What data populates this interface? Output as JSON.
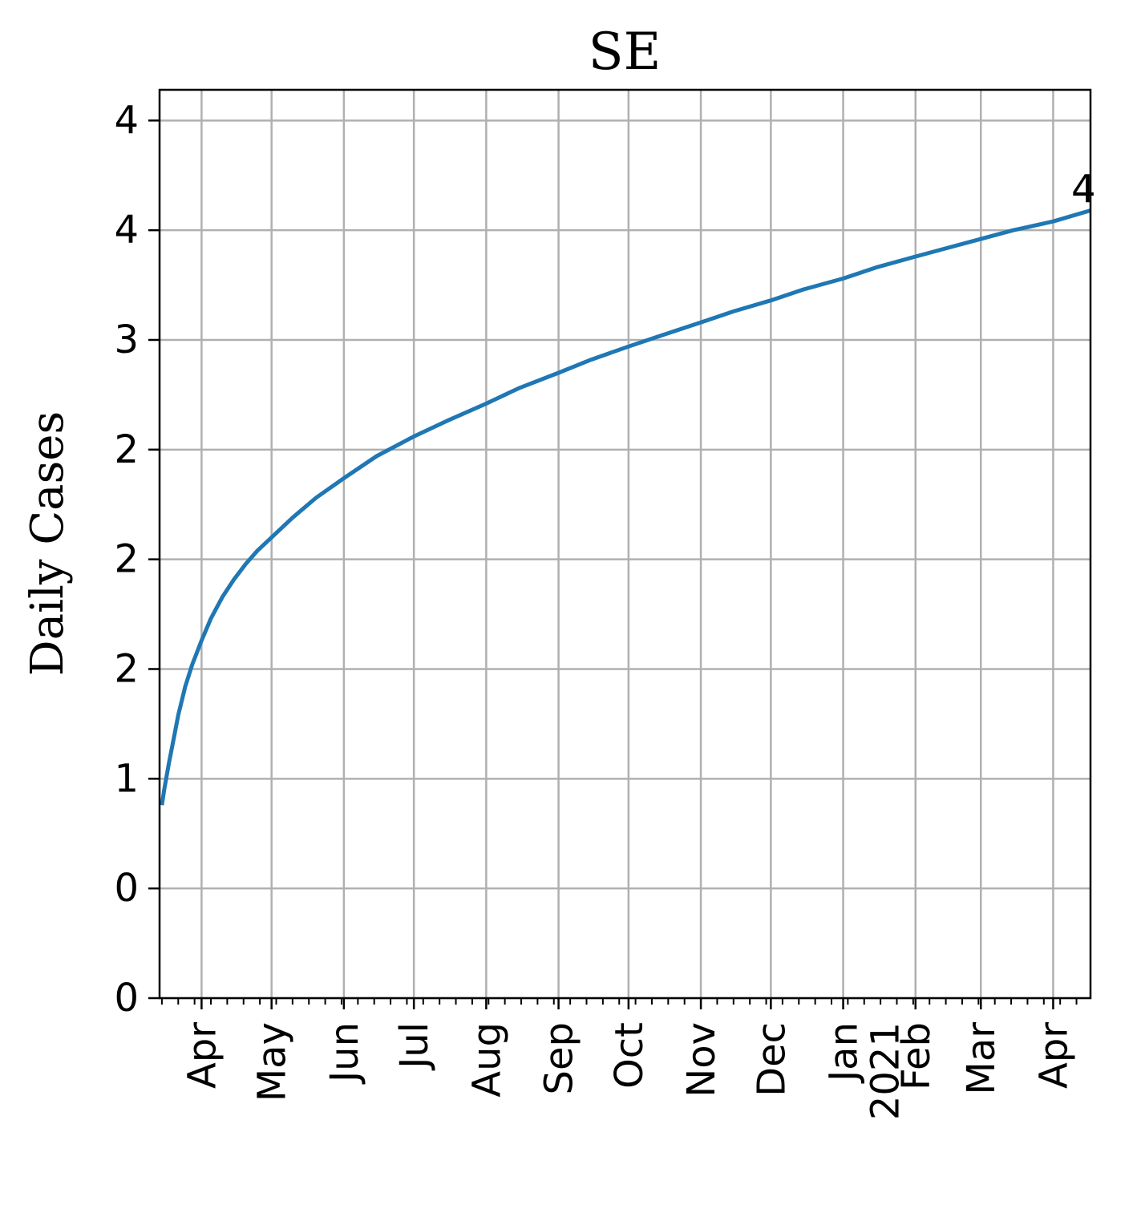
{
  "chart_data": {
    "type": "line",
    "title": "SE",
    "xlabel": "",
    "ylabel": "Daily Cases",
    "x_range": [
      "2020-03-14",
      "2021-04-17"
    ],
    "y_range": [
      0,
      4.14
    ],
    "grid": true,
    "legend": "none",
    "y_ticks": [
      {
        "value": 0.0,
        "label": "0"
      },
      {
        "value": 0.5,
        "label": "0"
      },
      {
        "value": 1.0,
        "label": "1"
      },
      {
        "value": 1.5,
        "label": "2"
      },
      {
        "value": 2.0,
        "label": "2"
      },
      {
        "value": 2.5,
        "label": "2"
      },
      {
        "value": 3.0,
        "label": "3"
      },
      {
        "value": 3.5,
        "label": "4"
      },
      {
        "value": 4.0,
        "label": "4"
      }
    ],
    "x_ticks": [
      {
        "date": "2020-04-01",
        "label": "Apr"
      },
      {
        "date": "2020-05-01",
        "label": "May"
      },
      {
        "date": "2020-06-01",
        "label": "Jun"
      },
      {
        "date": "2020-07-01",
        "label": "Jul"
      },
      {
        "date": "2020-08-01",
        "label": "Aug"
      },
      {
        "date": "2020-09-01",
        "label": "Sep"
      },
      {
        "date": "2020-10-01",
        "label": "Oct"
      },
      {
        "date": "2020-11-01",
        "label": "Nov"
      },
      {
        "date": "2020-12-01",
        "label": "Dec"
      },
      {
        "date": "2021-01-01",
        "label": "Jan\n2021"
      },
      {
        "date": "2021-02-01",
        "label": "Feb"
      },
      {
        "date": "2021-03-01",
        "label": "Mar"
      },
      {
        "date": "2021-04-01",
        "label": "Apr"
      }
    ],
    "series": [
      {
        "color": "#1f77b4",
        "x": [
          "2020-03-15",
          "2020-03-16",
          "2020-03-17",
          "2020-03-18",
          "2020-03-20",
          "2020-03-22",
          "2020-03-25",
          "2020-03-28",
          "2020-04-01",
          "2020-04-05",
          "2020-04-10",
          "2020-04-15",
          "2020-04-20",
          "2020-04-25",
          "2020-05-01",
          "2020-05-10",
          "2020-05-20",
          "2020-06-01",
          "2020-06-15",
          "2020-07-01",
          "2020-07-15",
          "2020-08-01",
          "2020-08-15",
          "2020-09-01",
          "2020-09-15",
          "2020-10-01",
          "2020-10-15",
          "2020-11-01",
          "2020-11-15",
          "2020-12-01",
          "2020-12-15",
          "2021-01-01",
          "2021-01-15",
          "2021-02-01",
          "2021-02-15",
          "2021-03-01",
          "2021-03-15",
          "2021-04-01",
          "2021-04-17"
        ],
        "y": [
          0.88,
          0.95,
          1.01,
          1.07,
          1.18,
          1.29,
          1.42,
          1.52,
          1.63,
          1.73,
          1.83,
          1.91,
          1.98,
          2.04,
          2.1,
          2.19,
          2.28,
          2.37,
          2.47,
          2.56,
          2.63,
          2.71,
          2.78,
          2.85,
          2.91,
          2.97,
          3.02,
          3.08,
          3.13,
          3.18,
          3.23,
          3.28,
          3.33,
          3.38,
          3.42,
          3.46,
          3.5,
          3.54,
          3.59
        ]
      }
    ],
    "annotations": [
      {
        "text": "4",
        "x": "2021-04-17",
        "y": 3.59
      }
    ]
  }
}
